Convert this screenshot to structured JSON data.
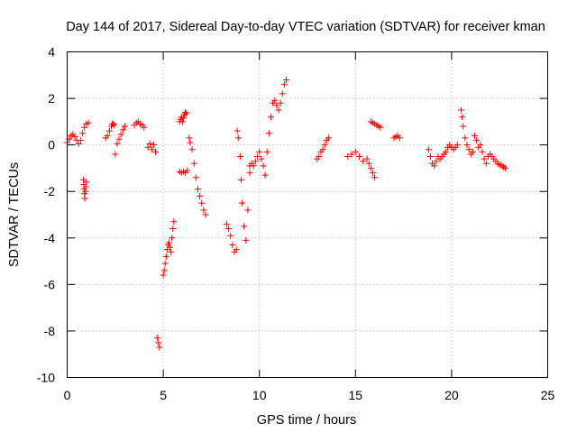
{
  "chart_data": {
    "type": "scatter",
    "title": "Day 144 of 2017, Sidereal Day-to-day VTEC variation (SDTVAR) for receiver kman",
    "xlabel": "GPS time / hours",
    "ylabel": "SDTVAR / TECUs",
    "xlim": [
      0,
      25
    ],
    "ylim": [
      -10,
      4
    ],
    "xticks": [
      0,
      5,
      10,
      15,
      20,
      25
    ],
    "yticks": [
      -10,
      -8,
      -6,
      -4,
      -2,
      0,
      2,
      4
    ],
    "grid": true,
    "marker": "+",
    "color": "#ff0000",
    "series": [
      {
        "name": "SDTVAR",
        "segments": [
          {
            "x": [
              0.0,
              0.1,
              0.2,
              0.3,
              0.4,
              0.5,
              0.6,
              0.7,
              0.8,
              0.9,
              1.0,
              1.1
            ],
            "y": [
              0.1,
              0.25,
              0.4,
              0.45,
              0.35,
              0.2,
              0.05,
              0.2,
              0.5,
              0.75,
              0.9,
              0.95
            ]
          },
          {
            "x": [
              0.85,
              0.87,
              0.89,
              0.9,
              0.92,
              0.95,
              0.97,
              1.0
            ],
            "y": [
              -1.5,
              -1.7,
              -1.9,
              -2.1,
              -2.3,
              -2.0,
              -1.8,
              -1.6
            ]
          },
          {
            "x": [
              2.0,
              2.1,
              2.2,
              2.3,
              2.35,
              2.4,
              2.45
            ],
            "y": [
              0.3,
              0.4,
              0.6,
              0.8,
              0.9,
              0.9,
              0.85
            ]
          },
          {
            "x": [
              2.5,
              2.6,
              2.7,
              2.8,
              2.9,
              3.0
            ],
            "y": [
              -0.4,
              0.05,
              0.25,
              0.45,
              0.65,
              0.8
            ]
          },
          {
            "x": [
              3.5,
              3.6,
              3.7,
              3.8,
              3.9,
              4.0
            ],
            "y": [
              0.85,
              0.95,
              1.0,
              0.9,
              0.85,
              0.75
            ]
          },
          {
            "x": [
              4.2,
              4.3,
              4.4,
              4.5,
              4.6
            ],
            "y": [
              -0.1,
              0.05,
              -0.2,
              0.0,
              -0.3
            ]
          },
          {
            "x": [
              4.7,
              4.75,
              4.8
            ],
            "y": [
              -8.3,
              -8.5,
              -8.7
            ]
          },
          {
            "x": [
              5.0,
              5.05,
              5.1,
              5.15,
              5.2,
              5.25,
              5.3,
              5.35,
              5.4,
              5.45,
              5.5,
              5.55
            ],
            "y": [
              -5.6,
              -5.4,
              -5.1,
              -4.8,
              -4.5,
              -4.3,
              -4.2,
              -4.4,
              -4.6,
              -4.0,
              -3.6,
              -3.3
            ]
          },
          {
            "x": [
              5.85,
              5.9,
              5.95,
              6.0,
              6.05,
              6.1,
              6.15,
              6.2
            ],
            "y": [
              1.0,
              1.1,
              1.2,
              1.0,
              1.15,
              1.3,
              1.4,
              1.35
            ]
          },
          {
            "x": [
              5.85,
              5.95,
              6.05,
              6.15,
              6.25
            ],
            "y": [
              -1.15,
              -1.2,
              -1.15,
              -1.2,
              -1.1
            ]
          },
          {
            "x": [
              6.35,
              6.4,
              6.5,
              6.6,
              6.7,
              6.8,
              6.9,
              7.0,
              7.1,
              7.2
            ],
            "y": [
              0.3,
              0.1,
              -0.2,
              -0.8,
              -1.4,
              -1.9,
              -2.2,
              -2.5,
              -2.8,
              -3.0
            ]
          },
          {
            "x": [
              8.3,
              8.4,
              8.5,
              8.6,
              8.7,
              8.8
            ],
            "y": [
              -3.4,
              -3.6,
              -3.9,
              -4.3,
              -4.6,
              -4.5
            ]
          },
          {
            "x": [
              8.85,
              8.9,
              9.0,
              9.05,
              9.1,
              9.2,
              9.3,
              9.4,
              9.5
            ],
            "y": [
              0.6,
              0.3,
              -0.5,
              -1.5,
              -2.5,
              -3.5,
              -4.1,
              -2.8,
              -1.2
            ]
          },
          {
            "x": [
              9.5,
              9.6,
              9.7,
              9.8,
              9.9,
              10.0,
              10.1,
              10.2,
              10.3
            ],
            "y": [
              -0.9,
              -0.8,
              -0.9,
              -0.7,
              -0.5,
              -0.3,
              -0.6,
              -0.9,
              -1.3
            ]
          },
          {
            "x": [
              10.4,
              10.5,
              10.6,
              10.7,
              10.8,
              10.9,
              11.0,
              11.1,
              11.2,
              11.3,
              11.4
            ],
            "y": [
              -0.3,
              0.5,
              1.2,
              1.8,
              1.9,
              1.7,
              1.5,
              1.8,
              2.2,
              2.6,
              2.8
            ]
          },
          {
            "x": [
              13.0,
              13.1,
              13.2,
              13.3,
              13.4,
              13.5,
              13.6
            ],
            "y": [
              -0.6,
              -0.5,
              -0.3,
              -0.2,
              0.0,
              0.2,
              0.3
            ]
          },
          {
            "x": [
              14.6,
              14.8,
              15.0,
              15.2,
              15.4
            ],
            "y": [
              -0.5,
              -0.4,
              -0.3,
              -0.5,
              -0.7
            ]
          },
          {
            "x": [
              15.6,
              15.7,
              15.8,
              15.9,
              16.0
            ],
            "y": [
              -0.6,
              -0.8,
              -1.0,
              -1.2,
              -1.4
            ]
          },
          {
            "x": [
              15.8,
              15.9,
              16.0,
              16.1,
              16.2,
              16.3
            ],
            "y": [
              1.0,
              0.95,
              0.9,
              0.85,
              0.8,
              0.75
            ]
          },
          {
            "x": [
              17.0,
              17.1,
              17.2,
              17.3
            ],
            "y": [
              0.3,
              0.35,
              0.4,
              0.3
            ]
          },
          {
            "x": [
              18.8,
              18.9,
              19.0,
              19.1,
              19.2,
              19.3,
              19.4
            ],
            "y": [
              -0.2,
              -0.5,
              -0.8,
              -0.9,
              -0.7,
              -0.5,
              -0.6
            ]
          },
          {
            "x": [
              19.5,
              19.6,
              19.7,
              19.8,
              19.9,
              20.0,
              20.1,
              20.2,
              20.3
            ],
            "y": [
              -0.5,
              -0.4,
              -0.3,
              -0.1,
              0.0,
              -0.1,
              -0.2,
              -0.1,
              0.0
            ]
          },
          {
            "x": [
              20.5,
              20.55,
              20.6,
              20.7,
              20.8,
              20.9,
              21.0,
              21.1
            ],
            "y": [
              1.5,
              1.2,
              0.8,
              0.3,
              0.0,
              -0.2,
              -0.4,
              -0.3
            ]
          },
          {
            "x": [
              21.2,
              21.3,
              21.4,
              21.5,
              21.6,
              21.7,
              21.8,
              21.9
            ],
            "y": [
              0.4,
              0.2,
              -0.1,
              0.0,
              -0.3,
              -0.6,
              -0.8,
              -0.5
            ]
          },
          {
            "x": [
              22.0,
              22.1,
              22.2,
              22.3,
              22.4,
              22.5,
              22.6,
              22.7,
              22.8
            ],
            "y": [
              -0.4,
              -0.5,
              -0.6,
              -0.7,
              -0.8,
              -0.85,
              -0.9,
              -0.95,
              -1.0
            ]
          }
        ]
      }
    ]
  }
}
